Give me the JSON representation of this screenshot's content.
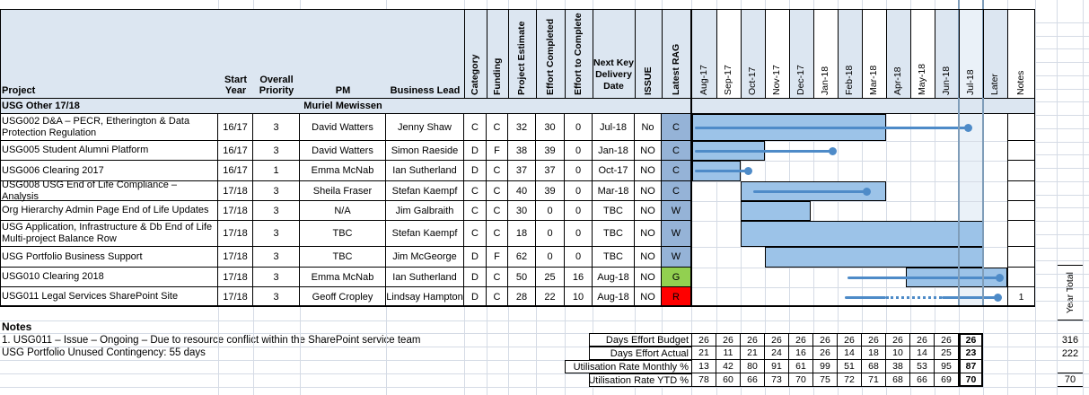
{
  "columns": {
    "project": "Project",
    "start_year": "Start Year",
    "priority": "Overall Priority",
    "pm": "PM",
    "business_lead": "Business Lead",
    "category": "Category",
    "funding": "Funding",
    "estimate": "Project Estimate",
    "effort_completed": "Effort Completed",
    "effort_to_complete": "Effort to Complete",
    "next_key": "Next Key Delivery Date",
    "issue": "ISSUE",
    "rag": "Latest RAG",
    "later": "Later",
    "notes_col": "Notes"
  },
  "months": [
    "Aug-17",
    "Sep-17",
    "Oct-17",
    "Nov-17",
    "Dec-17",
    "Jan-18",
    "Feb-18",
    "Mar-18",
    "Apr-18",
    "May-18",
    "Jun-18",
    "Jul-18"
  ],
  "current_month": "Jul-18",
  "section": {
    "title": "USG Other 17/18",
    "pm": "Muriel Mewissen"
  },
  "rows": [
    {
      "project": "USG002 D&A – PECR, Etherington & Data Protection Regulation",
      "start_year": "16/17",
      "priority": "3",
      "pm": "David Watters",
      "business_lead": "Jenny Shaw",
      "category": "C",
      "funding": "C",
      "estimate": "32",
      "effort_completed": "30",
      "effort_to_complete": "0",
      "next_key_date": "Jul-18",
      "issue": "No",
      "rag": "C",
      "note": "",
      "gantt": {
        "bar": [
          0,
          8
        ],
        "line": [
          0.1,
          11.4
        ],
        "dot": 11.4
      }
    },
    {
      "project": "USG005 Student Alumni Platform",
      "start_year": "16/17",
      "priority": "3",
      "pm": "David Watters",
      "business_lead": "Simon Raeside",
      "category": "D",
      "funding": "F",
      "estimate": "38",
      "effort_completed": "39",
      "effort_to_complete": "0",
      "next_key_date": "Jan-18",
      "issue": "NO",
      "rag": "C",
      "note": "",
      "gantt": {
        "bar": [
          0,
          3
        ],
        "line": [
          0.1,
          5.8
        ],
        "dot": 5.8
      }
    },
    {
      "project": "USG006 Clearing 2017",
      "start_year": "16/17",
      "priority": "1",
      "pm": "Emma McNab",
      "business_lead": "Ian Sutherland",
      "category": "D",
      "funding": "C",
      "estimate": "37",
      "effort_completed": "37",
      "effort_to_complete": "0",
      "next_key_date": "Oct-17",
      "issue": "NO",
      "rag": "C",
      "note": "",
      "gantt": {
        "bar": [
          0,
          2
        ],
        "line": [
          0.1,
          2.3
        ],
        "dot": 2.3
      }
    },
    {
      "project": "USG008 USG End of Life Compliance – Analysis",
      "start_year": "17/18",
      "priority": "3",
      "pm": "Sheila Fraser",
      "business_lead": "Stefan Kaempf",
      "category": "C",
      "funding": "C",
      "estimate": "40",
      "effort_completed": "39",
      "effort_to_complete": "0",
      "next_key_date": "Mar-18",
      "issue": "NO",
      "rag": "C",
      "note": "",
      "gantt": {
        "bar": [
          2,
          8
        ],
        "line": [
          2.5,
          7.2
        ],
        "dot": 7.2
      }
    },
    {
      "project": "Org Hierarchy Admin Page End of Life Updates",
      "start_year": "17/18",
      "priority": "3",
      "pm": "N/A",
      "business_lead": "Jim Galbraith",
      "category": "C",
      "funding": "C",
      "estimate": "30",
      "effort_completed": "0",
      "effort_to_complete": "0",
      "next_key_date": "TBC",
      "issue": "NO",
      "rag": "W",
      "note": "",
      "gantt": {
        "bar": [
          2,
          4.9
        ]
      }
    },
    {
      "project": "USG Application, Infrastructure & Db End of Life Multi-project Balance Row",
      "start_year": "17/18",
      "priority": "3",
      "pm": "TBC",
      "business_lead": "Stefan Kaempf",
      "category": "C",
      "funding": "C",
      "estimate": "18",
      "effort_completed": "0",
      "effort_to_complete": "0",
      "next_key_date": "TBC",
      "issue": "NO",
      "rag": "W",
      "note": "",
      "gantt": {
        "bar": [
          2,
          12.05
        ]
      }
    },
    {
      "project": "USG Portfolio Business Support",
      "start_year": "17/18",
      "priority": "3",
      "pm": "TBC",
      "business_lead": "Jim McGeorge",
      "category": "D",
      "funding": "F",
      "estimate": "62",
      "effort_completed": "0",
      "effort_to_complete": "0",
      "next_key_date": "TBC",
      "issue": "NO",
      "rag": "W",
      "note": "",
      "gantt": {
        "bar": [
          3,
          12.05
        ]
      }
    },
    {
      "project": "USG010 Clearing 2018",
      "start_year": "17/18",
      "priority": "3",
      "pm": "Emma McNab",
      "business_lead": "Ian Sutherland",
      "category": "D",
      "funding": "C",
      "estimate": "50",
      "effort_completed": "25",
      "effort_to_complete": "16",
      "next_key_date": "Aug-18",
      "issue": "NO",
      "rag": "G",
      "note": "",
      "gantt": {
        "bar": [
          8.8,
          13
        ],
        "line": [
          6.4,
          12.7
        ],
        "dot": 12.7
      }
    },
    {
      "project": "USG011 Legal Services SharePoint Site",
      "start_year": "17/18",
      "priority": "3",
      "pm": "Geoff Cropley",
      "business_lead": "Lindsay Hampton",
      "category": "D",
      "funding": "C",
      "estimate": "28",
      "effort_completed": "22",
      "effort_to_complete": "10",
      "next_key_date": "Aug-18",
      "issue": "NO",
      "rag": "R",
      "note": "1",
      "gantt": {
        "line": [
          6.3,
          12.6
        ],
        "dotted": [
          8,
          10.3
        ],
        "dot": 12.6
      }
    }
  ],
  "notes_block": {
    "title": "Notes",
    "lines": [
      "1. USG011 – Issue – Ongoing – Due to resource conflict within the SharePoint service team",
      "USG Portfolio Unused Contingency: 55 days"
    ]
  },
  "util": {
    "labels": [
      "Days Effort Budget",
      "Days Effort Actual",
      "Utilisation Rate Monthly %",
      "Utilisation Rate YTD %"
    ],
    "series": {
      "budget": [
        "26",
        "26",
        "26",
        "26",
        "26",
        "26",
        "26",
        "26",
        "26",
        "26",
        "26",
        "26"
      ],
      "actual": [
        "21",
        "11",
        "21",
        "24",
        "16",
        "26",
        "14",
        "18",
        "10",
        "14",
        "25",
        "23"
      ],
      "monthly": [
        "13",
        "42",
        "80",
        "91",
        "61",
        "99",
        "51",
        "68",
        "38",
        "53",
        "95",
        "87"
      ],
      "ytd": [
        "78",
        "60",
        "66",
        "73",
        "70",
        "75",
        "72",
        "71",
        "68",
        "66",
        "69",
        "70"
      ]
    }
  },
  "year_total": {
    "label": "Year Total",
    "budget": "316",
    "actual": "222",
    "ytd": "70"
  },
  "colors": {
    "header_fill": "#DCE6F1",
    "rag_C": "#95B3D7",
    "rag_W": "#95B3D7",
    "rag_G": "#92D050",
    "rag_R": "#FF0000",
    "bar_fill": "#9CC3E8",
    "bar_line": "#4E8BC8",
    "current_month_fill": "#EAF1F8",
    "current_month_border": "#7F9DB9",
    "grid": "#D5DBE5"
  }
}
